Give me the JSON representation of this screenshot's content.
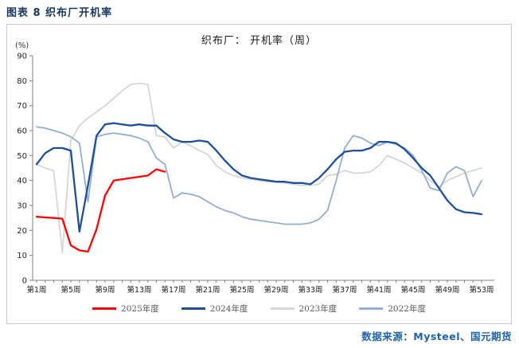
{
  "page": {
    "header_title": "图表 8 织布厂开机率",
    "source_label": "数据来源：Mysteel、国元期货"
  },
  "chart_data": {
    "type": "line",
    "title": "织布厂： 开机率（周）",
    "unit_label": "(%)",
    "xlabel": "",
    "ylabel": "(%)",
    "ylim": [
      0,
      90
    ],
    "ytick_labels": [
      "0",
      "10",
      "20",
      "30",
      "40",
      "50",
      "60",
      "70",
      "80",
      "90"
    ],
    "x_range_weeks": [
      1,
      53
    ],
    "xtick_labels": [
      "第1周",
      "第5周",
      "第9周",
      "第13周",
      "第17周",
      "第21周",
      "第25周",
      "第29周",
      "第33周",
      "第37周",
      "第41周",
      "第45周",
      "第49周",
      "第53周"
    ],
    "grid": false,
    "legend_position": "bottom",
    "axis_color": "#808080",
    "series": [
      {
        "name": "2025年度",
        "color": "#FE0000",
        "width": 2.3,
        "start_week": 1,
        "values": [
          25.5,
          25.2,
          25.0,
          24.7,
          14.0,
          12.0,
          11.5,
          20.5,
          34.0,
          40.0,
          40.5,
          41.0,
          41.5,
          42.0,
          44.5,
          43.5
        ]
      },
      {
        "name": "2024年度",
        "color": "#1F4E9B",
        "width": 2.3,
        "start_week": 1,
        "values": [
          46.5,
          51,
          53,
          53,
          52,
          19.5,
          38,
          58,
          62.5,
          63,
          62.5,
          62,
          62.5,
          62,
          62,
          59,
          56.5,
          55.5,
          55.5,
          56,
          55.5,
          52,
          48,
          44.5,
          42,
          41,
          40.5,
          40,
          39.5,
          39.5,
          39,
          39,
          38.5,
          41,
          44.5,
          48.5,
          51.5,
          52,
          52,
          53,
          55.5,
          55.5,
          55,
          52.5,
          49,
          45,
          42,
          37,
          32,
          28.5,
          27.3,
          27,
          26.5
        ]
      },
      {
        "name": "2023年度",
        "color": "#D6D6D6",
        "width": 1.8,
        "start_week": 1,
        "values": [
          46.5,
          45,
          44,
          11,
          56,
          62,
          65,
          67.5,
          70,
          73,
          76,
          78.5,
          79,
          78.5,
          58,
          57.5,
          53,
          55.5,
          54,
          52,
          50.5,
          46,
          43.5,
          42,
          41,
          40.5,
          40,
          39.5,
          39.5,
          39,
          38.5,
          38,
          38,
          38.5,
          42,
          42.5,
          44,
          43,
          43,
          43.5,
          46,
          50,
          48.5,
          47,
          45,
          43,
          40,
          37.5,
          40,
          41.5,
          43,
          44,
          45
        ]
      },
      {
        "name": "2022年度",
        "color": "#93ADD4",
        "width": 1.8,
        "start_week": 1,
        "values": [
          61.5,
          61,
          60,
          59,
          57.5,
          55,
          31.5,
          57.5,
          58.5,
          59,
          58.5,
          58,
          57,
          55.5,
          49,
          46.5,
          33,
          35,
          34.5,
          33.5,
          31.5,
          29.5,
          28,
          27,
          25.5,
          24.5,
          24,
          23.5,
          23,
          22.5,
          22.5,
          22.5,
          23,
          24.5,
          28,
          40,
          53,
          58,
          57,
          55,
          54,
          55.5,
          54.5,
          53,
          50,
          44,
          37,
          36,
          43,
          45.5,
          44,
          33.5,
          40
        ]
      }
    ],
    "draw_order": [
      2,
      3,
      1,
      0
    ]
  }
}
